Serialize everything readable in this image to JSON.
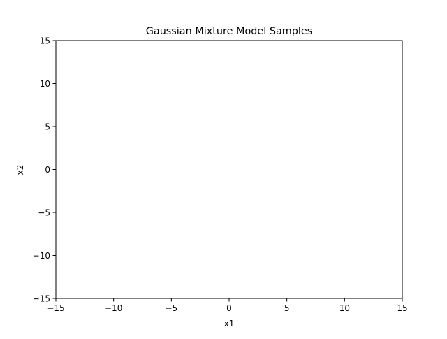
{
  "chart_data": {
    "type": "scatter",
    "title": "Gaussian Mixture Model Samples",
    "xlabel": "x1",
    "ylabel": "x2",
    "xlim": [
      -15,
      15
    ],
    "ylim": [
      -15,
      15
    ],
    "xticks": [
      -15,
      -10,
      -5,
      0,
      5,
      10,
      15
    ],
    "yticks": [
      -15,
      -10,
      -5,
      0,
      5,
      10,
      15
    ],
    "xtick_labels": [
      "−15",
      "−10",
      "−5",
      "0",
      "5",
      "10",
      "15"
    ],
    "ytick_labels": [
      "−15",
      "−10",
      "−5",
      "0",
      "5",
      "10",
      "15"
    ],
    "grid": false,
    "series": []
  }
}
